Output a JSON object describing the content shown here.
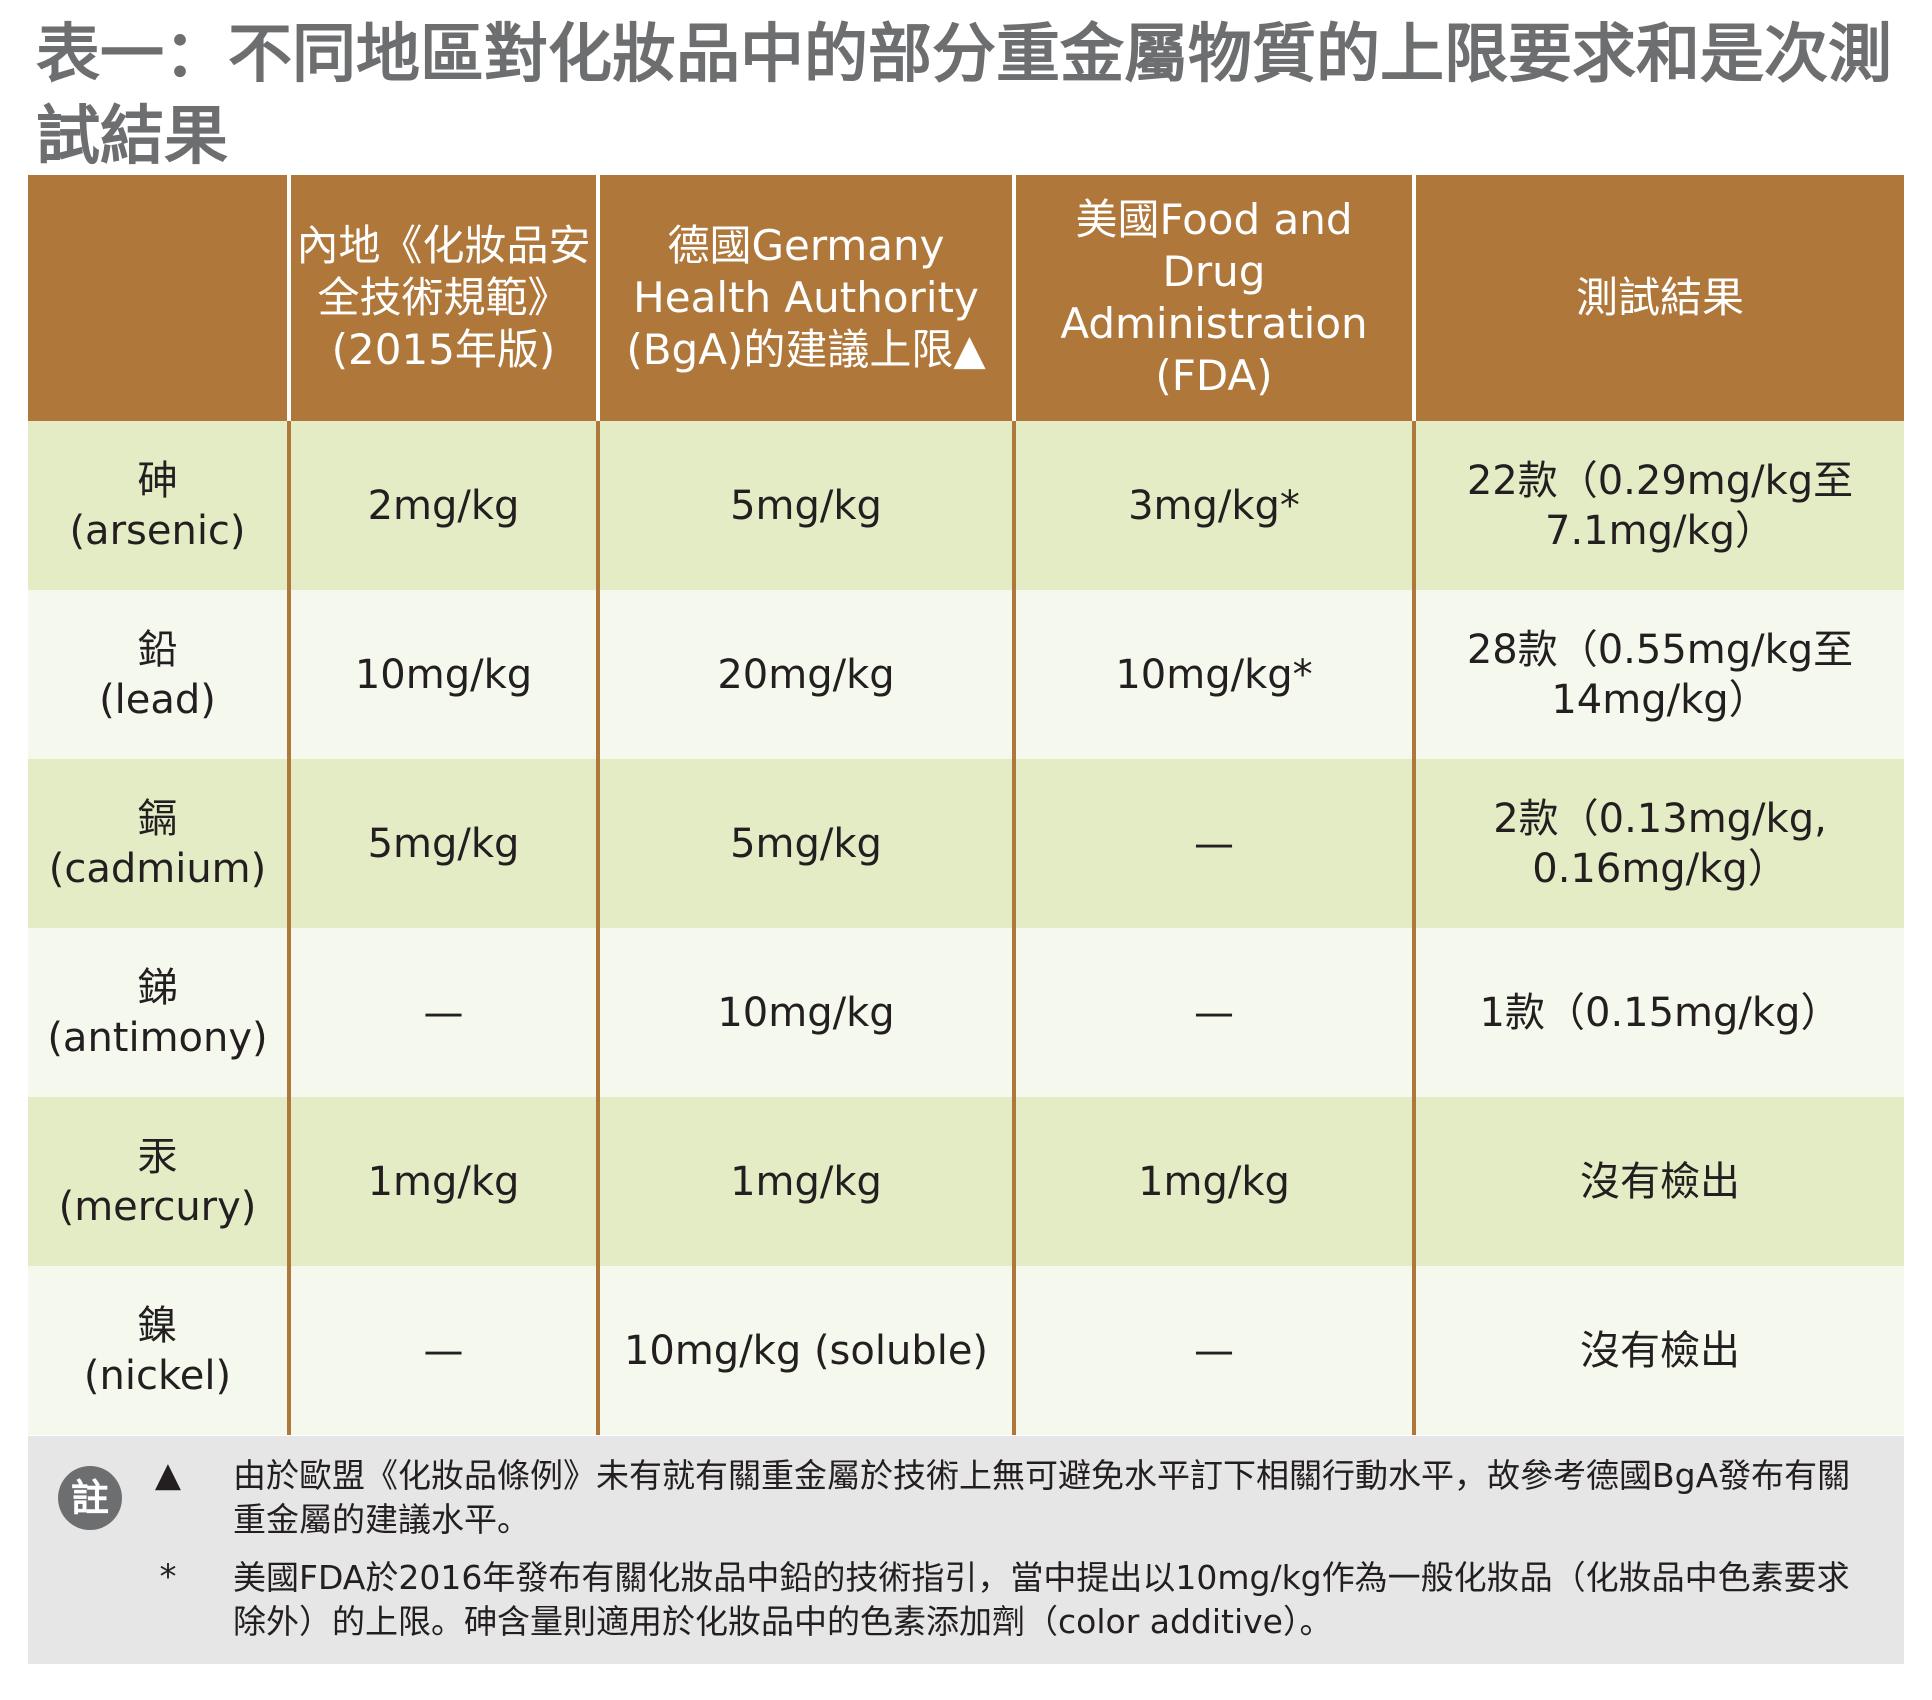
{
  "title": "表一：不同地區對化妝品中的部分重金屬物質的上限要求和是次測試結果",
  "table": {
    "headers": [
      "",
      "內地《化妝品安全技術規範》(2015年版)",
      "德國Germany Health Authority (BgA)的建議上限▲",
      "美國Food and Drug Administration (FDA)",
      "測試結果"
    ],
    "rows": [
      {
        "zh": "砷",
        "en": "(arsenic)",
        "china": "2mg/kg",
        "germany": "5mg/kg",
        "usa": "3mg/kg*",
        "result": "22款（0.29mg/kg至7.1mg/kg）"
      },
      {
        "zh": "鉛",
        "en": "(lead)",
        "china": "10mg/kg",
        "germany": "20mg/kg",
        "usa": "10mg/kg*",
        "result": "28款（0.55mg/kg至14mg/kg）"
      },
      {
        "zh": "鎘",
        "en": "(cadmium)",
        "china": "5mg/kg",
        "germany": "5mg/kg",
        "usa": "—",
        "result": "2款（0.13mg/kg, 0.16mg/kg）"
      },
      {
        "zh": "銻",
        "en": "(antimony)",
        "china": "—",
        "germany": "10mg/kg",
        "usa": "—",
        "result": "1款（0.15mg/kg）"
      },
      {
        "zh": "汞",
        "en": "(mercury)",
        "china": "1mg/kg",
        "germany": "1mg/kg",
        "usa": "1mg/kg",
        "result": "沒有檢出"
      },
      {
        "zh": "鎳",
        "en": "(nickel)",
        "china": "—",
        "germany": "10mg/kg (soluble)",
        "usa": "—",
        "result": "沒有檢出"
      }
    ]
  },
  "notes": {
    "badge": "註",
    "items": [
      {
        "symbol": "▲",
        "text": "由於歐盟《化妝品條例》未有就有關重金屬於技術上無可避免水平訂下相關行動水平，故參考德國BgA發布有關重金屬的建議水平。"
      },
      {
        "symbol": "*",
        "text": "美國FDA於2016年發布有關化妝品中鉛的技術指引，當中提出以10mg/kg作為一般化妝品（化妝品中色素要求除外）的上限。砷含量則適用於化妝品中的色素添加劑（color additive）。"
      }
    ]
  }
}
